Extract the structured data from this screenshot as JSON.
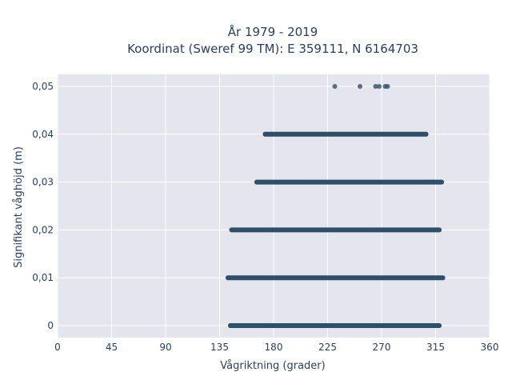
{
  "chart_data": {
    "type": "scatter",
    "title": "År 1979 - 2019",
    "subtitle": "Koordinat (Sweref 99 TM): E 359111, N 6164703",
    "xlabel": "Vågriktning (grader)",
    "ylabel": "Signifikant våghöjd (m)",
    "xlim": [
      0,
      360
    ],
    "ylim": [
      -0.0025,
      0.0525
    ],
    "x_ticks": [
      0,
      45,
      90,
      135,
      180,
      225,
      270,
      315,
      360
    ],
    "x_tick_labels": [
      "0",
      "45",
      "90",
      "135",
      "180",
      "225",
      "270",
      "315",
      "360"
    ],
    "y_ticks": [
      0,
      0.01,
      0.02,
      0.03,
      0.04,
      0.05
    ],
    "y_tick_labels": [
      "0",
      "0,01",
      "0,02",
      "0,03",
      "0,04",
      "0,05"
    ],
    "grid": true,
    "background": "#e5e5ee",
    "marker_color": "#2f4f68",
    "bands": [
      {
        "y": 0,
        "x_min": 144,
        "x_max": 318
      },
      {
        "y": 0.01,
        "x_min": 142,
        "x_max": 321
      },
      {
        "y": 0.02,
        "x_min": 145,
        "x_max": 318
      },
      {
        "y": 0.03,
        "x_min": 166,
        "x_max": 320
      },
      {
        "y": 0.04,
        "x_min": 173,
        "x_max": 307
      }
    ],
    "points": [
      {
        "x": 231,
        "y": 0.05
      },
      {
        "x": 252,
        "y": 0.05
      },
      {
        "x": 265,
        "y": 0.05
      },
      {
        "x": 268,
        "y": 0.05
      },
      {
        "x": 273,
        "y": 0.05
      },
      {
        "x": 275,
        "y": 0.05
      },
      {
        "x": 173,
        "y": 0.04
      },
      {
        "x": 178,
        "y": 0.04
      },
      {
        "x": 307,
        "y": 0.04
      },
      {
        "x": 166,
        "y": 0.03
      },
      {
        "x": 306,
        "y": 0.03
      },
      {
        "x": 312,
        "y": 0.03
      },
      {
        "x": 314,
        "y": 0.03
      },
      {
        "x": 320,
        "y": 0.03
      },
      {
        "x": 145,
        "y": 0.02
      },
      {
        "x": 318,
        "y": 0.02
      },
      {
        "x": 142,
        "y": 0.01
      },
      {
        "x": 321,
        "y": 0.01
      },
      {
        "x": 144,
        "y": 0
      },
      {
        "x": 318,
        "y": 0
      }
    ]
  }
}
